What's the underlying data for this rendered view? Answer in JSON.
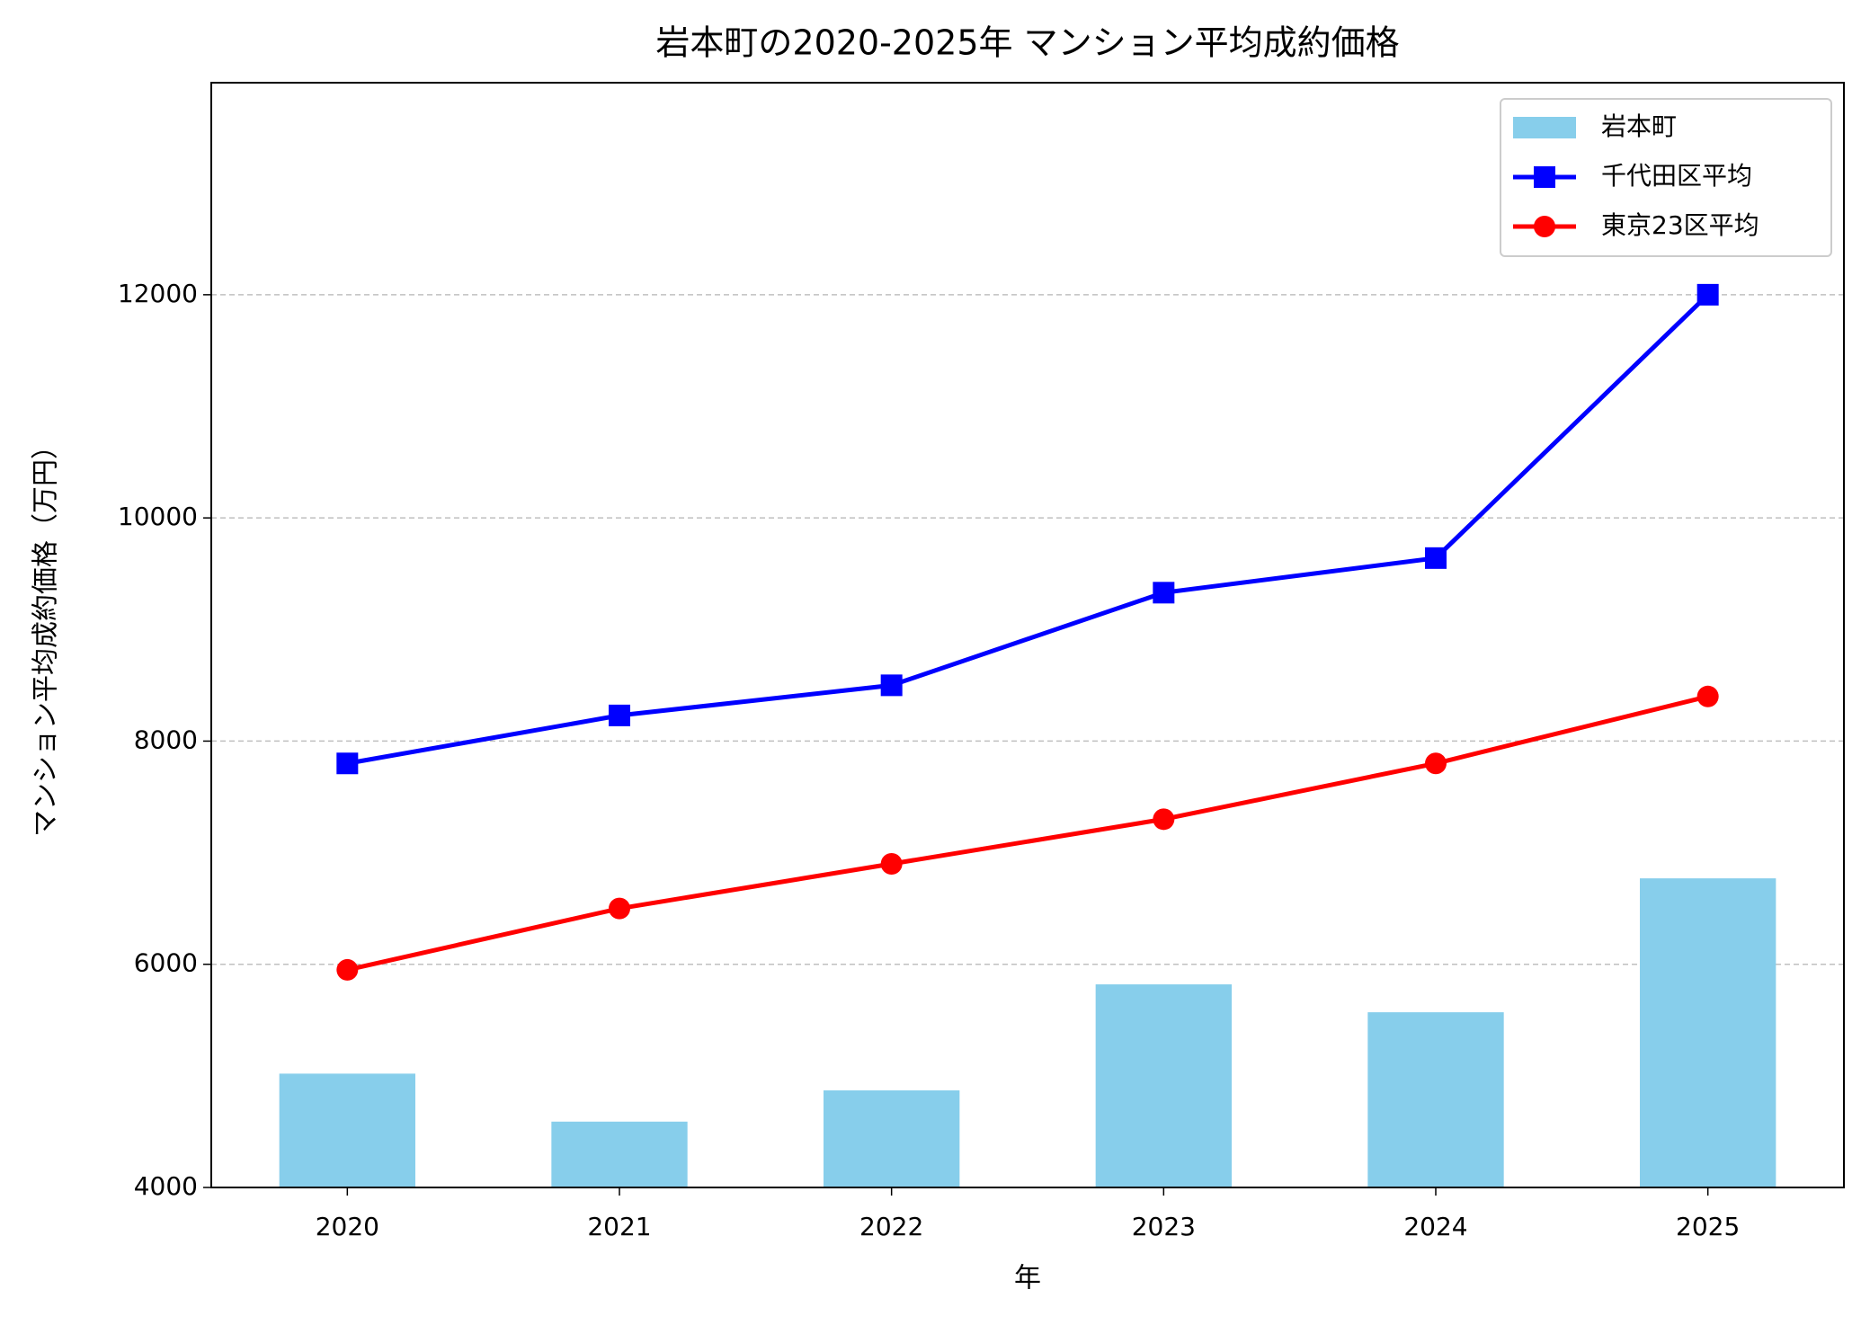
{
  "chart_data": {
    "type": "bar",
    "title": "岩本町の2020-2025年 マンション平均成約価格",
    "x_label": "年",
    "y_label": "マンション平均成約価格（万円）",
    "categories": [
      "2020",
      "2021",
      "2022",
      "2023",
      "2024",
      "2025"
    ],
    "series": [
      {
        "name": "岩本町",
        "type": "bar",
        "color": "#87ceeb",
        "values": [
          5020,
          4590,
          4870,
          5820,
          5570,
          6770
        ]
      },
      {
        "name": "千代田区平均",
        "type": "line",
        "marker": "square",
        "color": "#0000ff",
        "values": [
          7800,
          8230,
          8500,
          9330,
          9640,
          12000
        ]
      },
      {
        "name": "東京23区平均",
        "type": "line",
        "marker": "circle",
        "color": "#ff0000",
        "values": [
          5950,
          6500,
          6900,
          7300,
          7800,
          8400
        ]
      }
    ],
    "ylim": [
      4000,
      13900
    ],
    "yticks": [
      4000,
      6000,
      8000,
      10000,
      12000
    ],
    "grid": true,
    "legend": "upper-right"
  }
}
